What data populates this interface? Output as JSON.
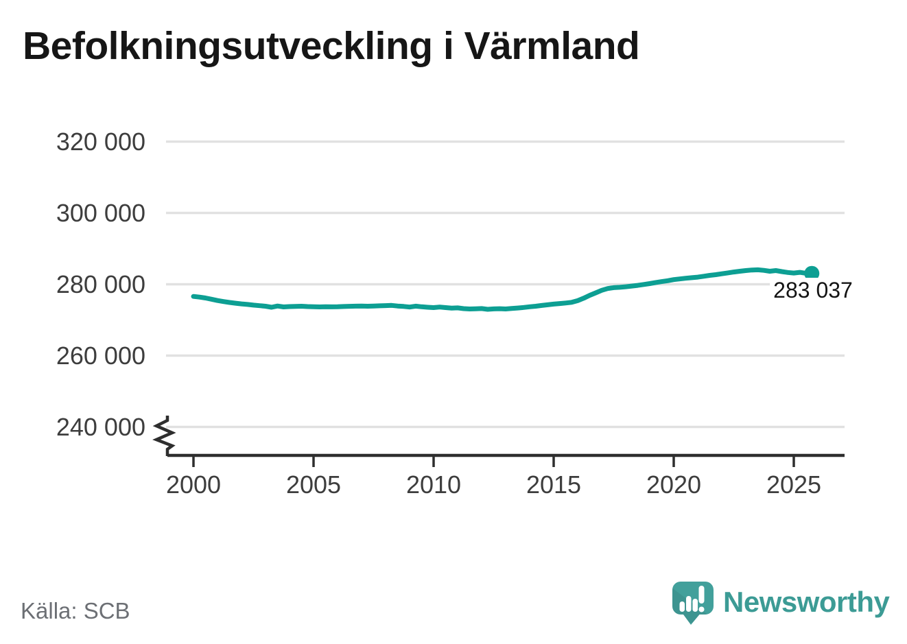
{
  "title": "Befolkningsutveckling i Värmland",
  "source_label": "Källa: SCB",
  "brand": {
    "name": "Newsworthy",
    "logo_icon": "speech-bubble-bar-chart-exclamation",
    "text_color": "#3c9b95",
    "mark_color": "#42a09b"
  },
  "colors": {
    "line": "#0d9f93",
    "grid": "#e1e1e1",
    "axis": "#2e2e2e",
    "tick_text": "#3d3d3d",
    "title_text": "#161616",
    "source_text": "#6c6f74"
  },
  "chart_data": {
    "type": "line",
    "title": "Befolkningsutveckling i Värmland",
    "xlabel": "",
    "ylabel": "",
    "grid": "horizontal",
    "x_axis": {
      "range": [
        2000,
        2027.1
      ],
      "tick_values": [
        2000,
        2005,
        2010,
        2015,
        2020,
        2025
      ],
      "tick_labels": [
        "2000",
        "2005",
        "2010",
        "2015",
        "2020",
        "2025"
      ]
    },
    "y_axis": {
      "shown_range": [
        240000,
        320000
      ],
      "axis_break_below": 240000,
      "tick_values": [
        320000,
        300000,
        280000,
        260000,
        240000
      ],
      "tick_labels": [
        "320 000",
        "300 000",
        "280 000",
        "260 000",
        "240 000"
      ]
    },
    "end_annotation": {
      "label": "283 037",
      "value": 283037,
      "x": 2025.75
    },
    "series": [
      {
        "name": "Värmland",
        "color": "#0d9f93",
        "points": [
          [
            2000.0,
            276600
          ],
          [
            2000.25,
            276400
          ],
          [
            2000.5,
            276150
          ],
          [
            2000.75,
            275800
          ],
          [
            2001.0,
            275450
          ],
          [
            2001.25,
            275150
          ],
          [
            2001.5,
            274900
          ],
          [
            2001.75,
            274700
          ],
          [
            2002.0,
            274500
          ],
          [
            2002.25,
            274350
          ],
          [
            2002.5,
            274150
          ],
          [
            2002.75,
            274000
          ],
          [
            2003.0,
            273850
          ],
          [
            2003.25,
            273550
          ],
          [
            2003.5,
            273900
          ],
          [
            2003.75,
            273650
          ],
          [
            2004.0,
            273750
          ],
          [
            2004.25,
            273800
          ],
          [
            2004.5,
            273850
          ],
          [
            2004.75,
            273750
          ],
          [
            2005.0,
            273700
          ],
          [
            2005.25,
            273650
          ],
          [
            2005.5,
            273700
          ],
          [
            2005.75,
            273680
          ],
          [
            2006.0,
            273700
          ],
          [
            2006.25,
            273760
          ],
          [
            2006.5,
            273820
          ],
          [
            2006.75,
            273860
          ],
          [
            2007.0,
            273900
          ],
          [
            2007.25,
            273840
          ],
          [
            2007.5,
            273910
          ],
          [
            2007.75,
            273960
          ],
          [
            2008.0,
            274010
          ],
          [
            2008.25,
            274080
          ],
          [
            2008.5,
            273900
          ],
          [
            2008.75,
            273780
          ],
          [
            2009.0,
            273620
          ],
          [
            2009.25,
            273860
          ],
          [
            2009.5,
            273700
          ],
          [
            2009.75,
            273560
          ],
          [
            2010.0,
            273460
          ],
          [
            2010.25,
            273620
          ],
          [
            2010.5,
            273460
          ],
          [
            2010.75,
            273330
          ],
          [
            2011.0,
            273390
          ],
          [
            2011.25,
            273180
          ],
          [
            2011.5,
            273080
          ],
          [
            2011.75,
            273140
          ],
          [
            2012.0,
            273200
          ],
          [
            2012.25,
            272980
          ],
          [
            2012.5,
            273090
          ],
          [
            2012.75,
            273160
          ],
          [
            2013.0,
            273080
          ],
          [
            2013.25,
            273220
          ],
          [
            2013.5,
            273350
          ],
          [
            2013.75,
            273500
          ],
          [
            2014.0,
            273700
          ],
          [
            2014.25,
            273850
          ],
          [
            2014.5,
            274050
          ],
          [
            2014.75,
            274250
          ],
          [
            2015.0,
            274450
          ],
          [
            2015.25,
            274600
          ],
          [
            2015.5,
            274750
          ],
          [
            2015.75,
            274950
          ],
          [
            2016.0,
            275400
          ],
          [
            2016.25,
            276100
          ],
          [
            2016.5,
            276900
          ],
          [
            2016.75,
            277600
          ],
          [
            2017.0,
            278300
          ],
          [
            2017.25,
            278800
          ],
          [
            2017.5,
            279050
          ],
          [
            2017.75,
            279150
          ],
          [
            2018.0,
            279300
          ],
          [
            2018.25,
            279500
          ],
          [
            2018.5,
            279700
          ],
          [
            2018.75,
            279950
          ],
          [
            2019.0,
            280200
          ],
          [
            2019.25,
            280500
          ],
          [
            2019.5,
            280750
          ],
          [
            2019.75,
            281000
          ],
          [
            2020.0,
            281300
          ],
          [
            2020.25,
            281500
          ],
          [
            2020.5,
            281700
          ],
          [
            2020.75,
            281850
          ],
          [
            2021.0,
            282000
          ],
          [
            2021.25,
            282250
          ],
          [
            2021.5,
            282500
          ],
          [
            2021.75,
            282700
          ],
          [
            2022.0,
            282950
          ],
          [
            2022.25,
            283200
          ],
          [
            2022.5,
            283450
          ],
          [
            2022.75,
            283650
          ],
          [
            2023.0,
            283850
          ],
          [
            2023.25,
            284000
          ],
          [
            2023.5,
            284050
          ],
          [
            2023.75,
            283900
          ],
          [
            2024.0,
            283650
          ],
          [
            2024.25,
            283850
          ],
          [
            2024.5,
            283550
          ],
          [
            2024.75,
            283300
          ],
          [
            2025.0,
            283150
          ],
          [
            2025.25,
            283350
          ],
          [
            2025.5,
            283100
          ],
          [
            2025.75,
            283037
          ]
        ]
      }
    ]
  }
}
